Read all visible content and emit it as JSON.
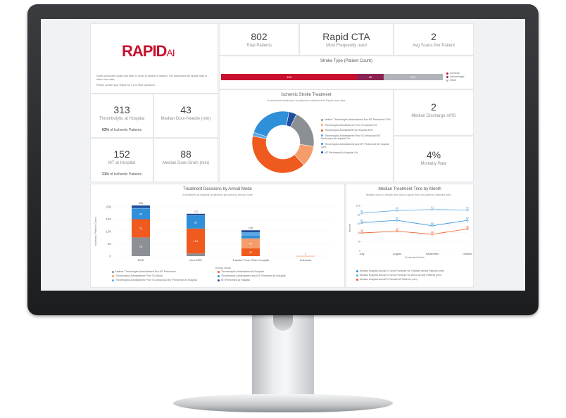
{
  "brand": {
    "name": "RAPID",
    "suffix": "AI",
    "color": "#c8102e"
  },
  "notes": {
    "line1": "Scans processed today may take 24 hours to appear in dataset. The dashboard will update daily to reflect new data.",
    "line2": "Please contact your Rapid rep if you have questions."
  },
  "kpis": {
    "total_patients": {
      "value": "802",
      "label": "Total Patients"
    },
    "most_used": {
      "value": "Rapid CTA",
      "label": "Most Frequently used"
    },
    "avg_scans": {
      "value": "2",
      "label": "Avg Scans Per Patient"
    },
    "thrombolytic": {
      "value": "313",
      "label": "Thrombolytic at Hospital",
      "sub_bold": "63%",
      "sub_rest": " of Ischemic Patients"
    },
    "door_needle": {
      "value": "43",
      "label": "Median Door-Needle (min)"
    },
    "mt_hospital": {
      "value": "152",
      "label": "MT at Hospital",
      "sub_bold": "31%",
      "sub_rest": " of Ischemic Patients"
    },
    "door_groin": {
      "value": "88",
      "label": "Median Door-Groin (min)"
    },
    "discharge_mrs": {
      "value": "2",
      "label": "Median Discharge mRS"
    },
    "mortality": {
      "value": "4%",
      "label": "Mortality Rate"
    }
  },
  "stroke_type": {
    "title": "Stroke Type (Patient Count)",
    "segments": [
      {
        "label": "Ischemic",
        "value": 493,
        "color": "#c8102e",
        "text": "493"
      },
      {
        "label": "Hemorrhagic",
        "value": 95,
        "color": "#8b2252",
        "text": "95"
      },
      {
        "label": "Other",
        "value": 215,
        "color": "#b0b3b7",
        "text": "215"
      }
    ]
  },
  "donut": {
    "title": "Ischemic Stroke Treatment",
    "subtitle": "A treatment breakdown for patients matched with Rapid scan data",
    "slices": [
      {
        "label": "Neither Thrombolytic Administered Nor MT Performed 20%",
        "value": 20,
        "color": "#8c8f93"
      },
      {
        "label": "Thrombolytic Administered Prior To Arrival 11%",
        "value": 11,
        "color": "#f59c6b"
      },
      {
        "label": "Thrombolytic Administered At Hospital 40%",
        "value": 40,
        "color": "#ef5a1e"
      },
      {
        "label": "Thrombolytic Administered Prior To Arrival and MT Performed At Hospital 2%",
        "value": 2,
        "color": "#5aa9e6"
      },
      {
        "label": "Thrombolytic Administered and MT Performed At Hospital 23%",
        "value": 23,
        "color": "#2f8fd8"
      },
      {
        "label": "MT Performed At Hospital 4%",
        "value": 4,
        "color": "#1f4f9c"
      }
    ]
  },
  "chart_data": [
    {
      "type": "bar",
      "title": "Treatment Decisions by Arrival Mode",
      "subtitle": "A treatment-at-hospital breakdown grouped by arrival mode",
      "xlabel": "Arrival Mode",
      "ylabel": "Ischemic Patient Count",
      "ylim": [
        0,
        200
      ],
      "yticks": [
        "0",
        "50",
        "100",
        "150",
        "200"
      ],
      "categories": [
        "EMS",
        "Non-EMS",
        "Transfer From Other Hospital",
        "Unknown"
      ],
      "totals": [
        "206",
        "172",
        "105",
        "1"
      ],
      "series": [
        {
          "name": "Neither Thrombolytic Administered Nor MT Performed",
          "color": "#8c8f93",
          "values": [
            76,
            11,
            0,
            0
          ],
          "labels": [
            "76",
            "11",
            "",
            ""
          ]
        },
        {
          "name": "Thrombolytic Administered At Hospital",
          "color": "#ef5a1e",
          "values": [
            74,
            101,
            32,
            0
          ],
          "labels": [
            "74",
            "101",
            "32",
            ""
          ]
        },
        {
          "name": "Thrombolytic Administered Prior To Arrival",
          "color": "#f59c6b",
          "values": [
            0,
            0,
            40,
            1
          ],
          "labels": [
            "",
            "",
            "40",
            ""
          ]
        },
        {
          "name": "Thrombolytic Administered and MT Performed At Hospital",
          "color": "#2f8fd8",
          "values": [
            42,
            51,
            11,
            0
          ],
          "labels": [
            "42",
            "51",
            "11",
            ""
          ]
        },
        {
          "name": "Thrombolytic Administered Prior To Arrival and MT Performed At Hospital",
          "color": "#5aa9e6",
          "values": [
            3,
            2,
            14,
            0
          ],
          "labels": [
            "",
            "",
            "14",
            ""
          ]
        },
        {
          "name": "MT Performed At Hospital",
          "color": "#1f4f9c",
          "values": [
            11,
            7,
            8,
            0
          ],
          "labels": [
            "",
            "",
            "8",
            ""
          ]
        }
      ]
    },
    {
      "type": "line",
      "title": "Median Treatment Time by Month",
      "subtitle": "Median door-to-needle and door-to-groin time for patients matched with ...",
      "xlabel": "Treatment Month",
      "ylabel": "Minutes",
      "ylim": [
        0,
        100
      ],
      "yticks": [
        "0",
        "20",
        "40",
        "60",
        "80",
        "100"
      ],
      "categories": [
        "July",
        "August",
        "September",
        "October"
      ],
      "series": [
        {
          "name": "Median Hospital Arrival To Groin Puncture for Transfer Arrival Patients (min)",
          "color": "#2f8fd8",
          "values": [
            62,
            67,
            55,
            67
          ],
          "labels": [
            "62",
            "67",
            "55",
            "67"
          ]
        },
        {
          "name": "Median Hospital Arrival To Groin Puncture for Direct Arrival Patients (min)",
          "color": "#5aa9e6",
          "values": [
            83,
            89,
            91,
            90
          ],
          "labels": [
            "83",
            "89",
            "91",
            "90"
          ]
        },
        {
          "name": "Median Hospital Arrival To Needle All Patients (min)",
          "color": "#ef5a1e",
          "values": [
            39,
            43,
            36,
            48
          ],
          "labels": [
            "39",
            "43",
            "36",
            "48"
          ]
        }
      ]
    }
  ]
}
